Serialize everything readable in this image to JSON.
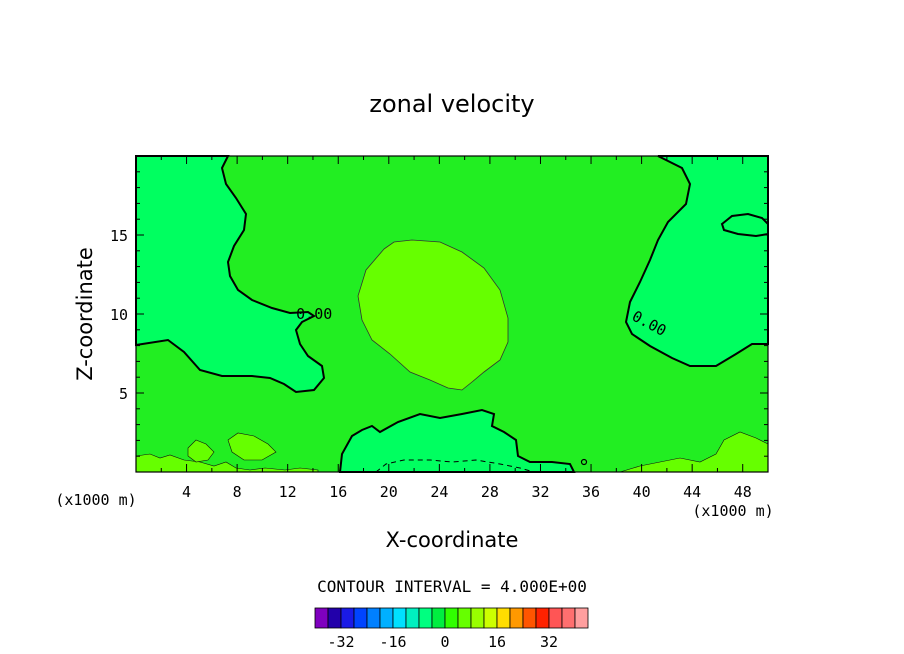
{
  "chart_data": {
    "type": "contour",
    "title": "zonal velocity",
    "xlabel": "X-coordinate",
    "ylabel": "Z-coordinate",
    "x_units_label": "(x1000 m)",
    "x_units_label_right": "(x1000 m)",
    "xlim": [
      0,
      50
    ],
    "ylim": [
      0,
      20
    ],
    "x_ticks": [
      4,
      8,
      12,
      16,
      20,
      24,
      28,
      32,
      36,
      40,
      44,
      48
    ],
    "y_ticks": [
      5,
      10,
      15
    ],
    "contour_labels": [
      {
        "text": "0.00",
        "x": 14.1,
        "y": 10.0
      },
      {
        "text": "0.00",
        "x": 40.6,
        "y": 9.4
      }
    ],
    "contour_interval_text": "CONTOUR INTERVAL = 4.000E+00",
    "levels": [
      -36,
      -32,
      -28,
      -24,
      -20,
      -16,
      -12,
      -8,
      -4,
      0,
      4,
      8,
      12,
      16,
      20,
      24,
      28,
      32,
      36
    ],
    "colorbar_colors": [
      "#7f00bf",
      "#2200aa",
      "#1a1ae6",
      "#0044ff",
      "#0080ff",
      "#00b0ff",
      "#00e0ff",
      "#00f0c0",
      "#00ff80",
      "#00ee40",
      "#30ff00",
      "#66ff00",
      "#99ff00",
      "#ccff00",
      "#ffdd00",
      "#ff9900",
      "#ff5500",
      "#ff2200",
      "#ff5555",
      "#ff6f6f",
      "#ff9f9f"
    ],
    "colorbar_tick_labels": [
      "-32",
      "-16",
      "0",
      "16",
      "32"
    ],
    "colorbar_tick_values": [
      -32,
      -16,
      0,
      16,
      32
    ],
    "field_colors": {
      "negative": "#00ff60",
      "background": "#22ee22",
      "positive": "#66ff00"
    }
  }
}
